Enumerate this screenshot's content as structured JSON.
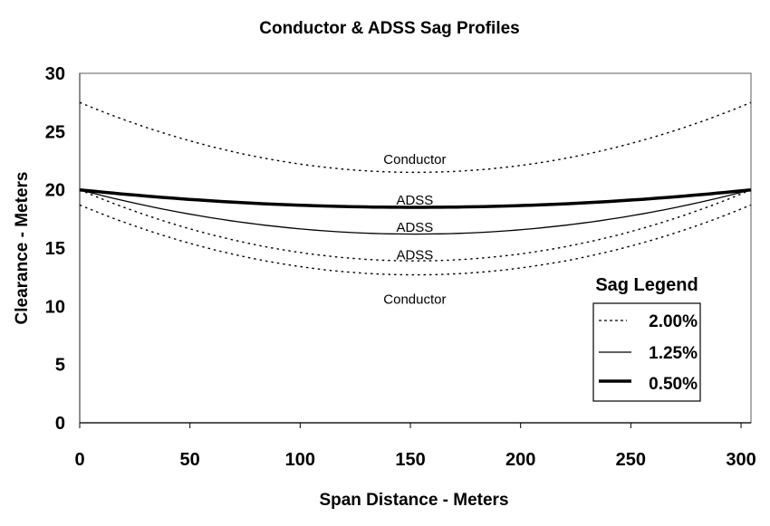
{
  "chart_data": {
    "type": "line",
    "title": "Conductor & ADSS Sag Profiles",
    "xlabel": "Span Distance - Meters",
    "ylabel": "Clearance - Meters",
    "xlim": [
      0,
      304.5
    ],
    "ylim": [
      0,
      30
    ],
    "xticks": [
      0,
      50,
      100,
      150,
      200,
      250,
      300
    ],
    "yticks": [
      0,
      5,
      10,
      15,
      20,
      25,
      30
    ],
    "grid": false,
    "legend": {
      "title": "Sag Legend",
      "position": "lower right",
      "entries": [
        {
          "label": "2.00%",
          "style": "dotted"
        },
        {
          "label": "1.25%",
          "style": "thin"
        },
        {
          "label": "0.50%",
          "style": "thick"
        }
      ]
    },
    "x": [
      0,
      50,
      100,
      152,
      200,
      250,
      304.5
    ],
    "series": [
      {
        "name": "Conductor (upper)",
        "sag": "2.00%",
        "style": "dotted",
        "end_left": 27.5,
        "mid": 21.5,
        "end_right": 27.5,
        "values": [
          27.5,
          24.4,
          22.2,
          21.5,
          22.1,
          24.2,
          27.5
        ]
      },
      {
        "name": "ADSS",
        "sag": "0.50%",
        "style": "thick",
        "end_left": 20.0,
        "mid": 18.5,
        "end_right": 20.0,
        "values": [
          20.0,
          19.2,
          18.7,
          18.5,
          18.7,
          19.2,
          20.0
        ]
      },
      {
        "name": "ADSS",
        "sag": "1.25%",
        "style": "thin",
        "end_left": 20.0,
        "mid": 16.2,
        "end_right": 20.0,
        "values": [
          20.0,
          18.1,
          16.7,
          16.2,
          16.6,
          17.9,
          20.0
        ]
      },
      {
        "name": "ADSS",
        "sag": "2.00%",
        "style": "dotted",
        "end_left": 20.0,
        "mid": 13.9,
        "end_right": 20.0,
        "values": [
          20.0,
          16.9,
          14.7,
          13.9,
          14.6,
          16.6,
          20.0
        ]
      },
      {
        "name": "Conductor (lower)",
        "sag": "2.00%",
        "style": "dotted",
        "end_left": 18.7,
        "mid": 12.7,
        "end_right": 18.7,
        "values": [
          18.7,
          15.6,
          13.5,
          12.7,
          13.4,
          15.4,
          18.7
        ]
      }
    ],
    "annotations": [
      {
        "text": "Conductor",
        "x": 152,
        "y": 22.6
      },
      {
        "text": "ADSS",
        "x": 152,
        "y": 19.1
      },
      {
        "text": "ADSS",
        "x": 152,
        "y": 16.8
      },
      {
        "text": "ADSS",
        "x": 152,
        "y": 14.4
      },
      {
        "text": "Conductor",
        "x": 152,
        "y": 10.6
      }
    ]
  }
}
